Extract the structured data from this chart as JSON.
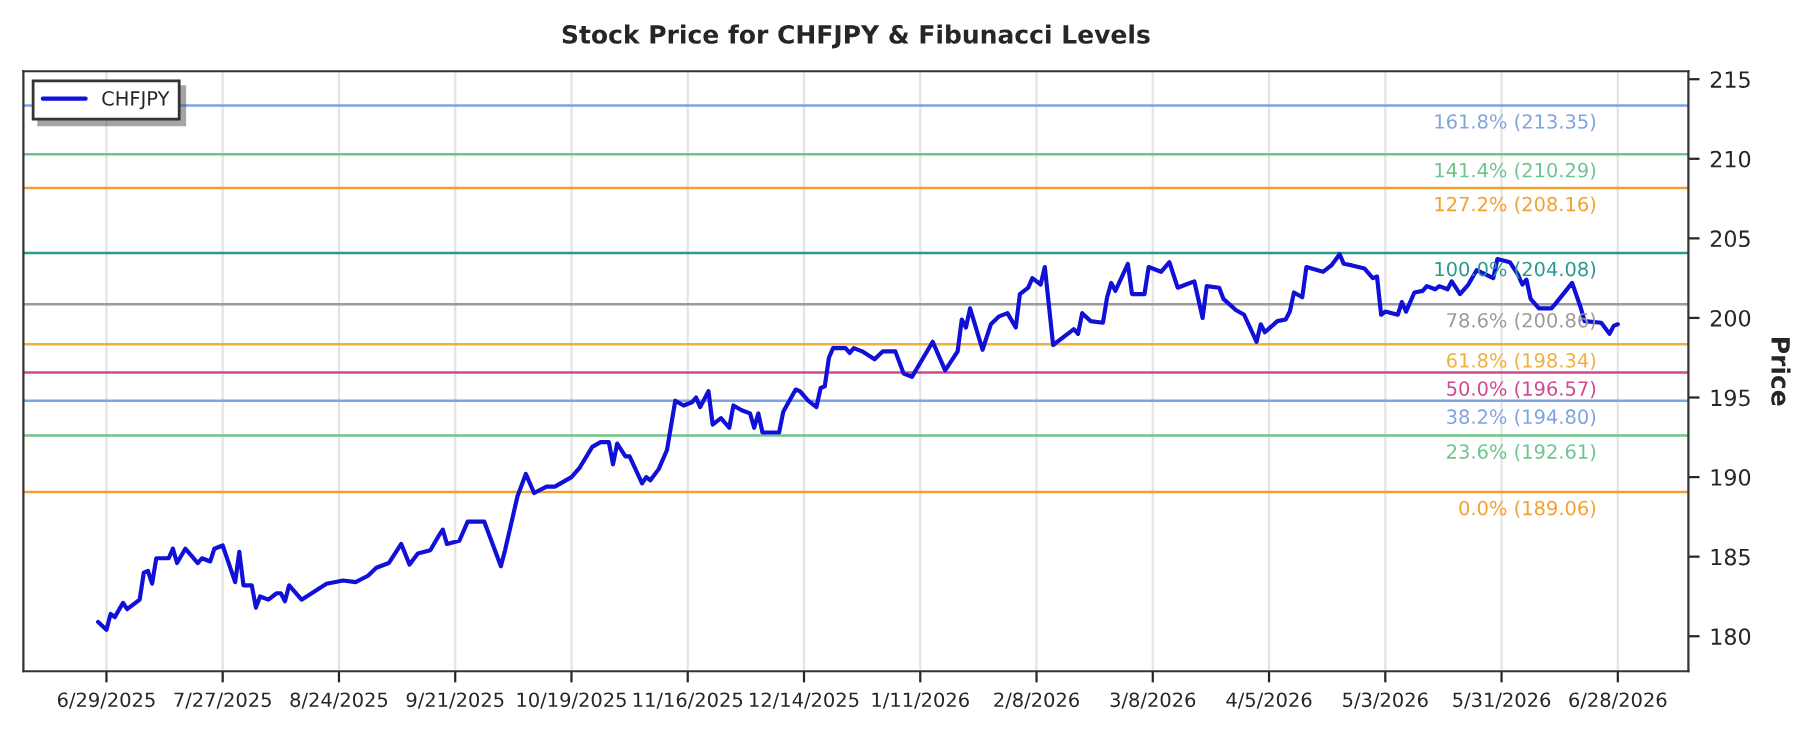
{
  "chart_data": {
    "type": "line",
    "title": "Stock Price for CHFJPY & Fibunacci Levels",
    "ylabel": "Price",
    "x": [
      "2025-06-27",
      "2025-06-29",
      "2025-06-30",
      "2025-07-01",
      "2025-07-03",
      "2025-07-04",
      "2025-07-07",
      "2025-07-08",
      "2025-07-09",
      "2025-07-10",
      "2025-07-11",
      "2025-07-14",
      "2025-07-15",
      "2025-07-16",
      "2025-07-18",
      "2025-07-21",
      "2025-07-22",
      "2025-07-24",
      "2025-07-25",
      "2025-07-27",
      "2025-07-30",
      "2025-07-31",
      "2025-08-01",
      "2025-08-03",
      "2025-08-04",
      "2025-08-05",
      "2025-08-07",
      "2025-08-09",
      "2025-08-10",
      "2025-08-11",
      "2025-08-12",
      "2025-08-15",
      "2025-08-18",
      "2025-08-21",
      "2025-08-25",
      "2025-08-28",
      "2025-08-31",
      "2025-09-02",
      "2025-09-05",
      "2025-09-08",
      "2025-09-10",
      "2025-09-12",
      "2025-09-15",
      "2025-09-17",
      "2025-09-18",
      "2025-09-19",
      "2025-09-22",
      "2025-09-24",
      "2025-09-28",
      "2025-09-30",
      "2025-10-02",
      "2025-10-03",
      "2025-10-06",
      "2025-10-08",
      "2025-10-10",
      "2025-10-13",
      "2025-10-15",
      "2025-10-19",
      "2025-10-21",
      "2025-10-24",
      "2025-10-26",
      "2025-10-28",
      "2025-10-29",
      "2025-10-30",
      "2025-11-01",
      "2025-11-02",
      "2025-11-05",
      "2025-11-06",
      "2025-11-07",
      "2025-11-09",
      "2025-11-11",
      "2025-11-13",
      "2025-11-15",
      "2025-11-17",
      "2025-11-18",
      "2025-11-19",
      "2025-11-21",
      "2025-11-22",
      "2025-11-24",
      "2025-11-26",
      "2025-11-27",
      "2025-11-29",
      "2025-12-01",
      "2025-12-02",
      "2025-12-03",
      "2025-12-04",
      "2025-12-08",
      "2025-12-09",
      "2025-12-12",
      "2025-12-13",
      "2025-12-15",
      "2025-12-17",
      "2025-12-18",
      "2025-12-19",
      "2025-12-20",
      "2025-12-21",
      "2025-12-24",
      "2025-12-25",
      "2025-12-26",
      "2025-12-28",
      "2025-12-31",
      "2026-01-02",
      "2026-01-05",
      "2026-01-07",
      "2026-01-09",
      "2026-01-14",
      "2026-01-17",
      "2026-01-20",
      "2026-01-21",
      "2026-01-22",
      "2026-01-23",
      "2026-01-26",
      "2026-01-28",
      "2026-01-30",
      "2026-02-01",
      "2026-02-03",
      "2026-02-04",
      "2026-02-06",
      "2026-02-07",
      "2026-02-09",
      "2026-02-10",
      "2026-02-12",
      "2026-02-14",
      "2026-02-17",
      "2026-02-18",
      "2026-02-19",
      "2026-02-21",
      "2026-02-24",
      "2026-02-25",
      "2026-02-26",
      "2026-02-27",
      "2026-03-02",
      "2026-03-03",
      "2026-03-06",
      "2026-03-07",
      "2026-03-10",
      "2026-03-12",
      "2026-03-14",
      "2026-03-16",
      "2026-03-18",
      "2026-03-20",
      "2026-03-21",
      "2026-03-24",
      "2026-03-25",
      "2026-03-28",
      "2026-03-30",
      "2026-04-02",
      "2026-04-03",
      "2026-04-04",
      "2026-04-07",
      "2026-04-09",
      "2026-04-10",
      "2026-04-11",
      "2026-04-13",
      "2026-04-14",
      "2026-04-18",
      "2026-04-20",
      "2026-04-22",
      "2026-04-23",
      "2026-04-25",
      "2026-04-28",
      "2026-04-30",
      "2026-05-01",
      "2026-05-02",
      "2026-05-03",
      "2026-05-06",
      "2026-05-07",
      "2026-05-08",
      "2026-05-10",
      "2026-05-12",
      "2026-05-13",
      "2026-05-15",
      "2026-05-16",
      "2026-05-18",
      "2026-05-19",
      "2026-05-21",
      "2026-05-23",
      "2026-05-25",
      "2026-05-29",
      "2026-05-30",
      "2026-06-02",
      "2026-06-04",
      "2026-06-05",
      "2026-06-06",
      "2026-06-07",
      "2026-06-09",
      "2026-06-12",
      "2026-06-13",
      "2026-06-17",
      "2026-06-19",
      "2026-06-20",
      "2026-06-24",
      "2026-06-26",
      "2026-06-27",
      "2026-06-28"
    ],
    "series": [
      {
        "name": "CHFJPY",
        "color": "#1010d8",
        "values": [
          180.9,
          180.4,
          181.4,
          181.2,
          182.1,
          181.7,
          182.3,
          184.0,
          184.1,
          183.3,
          184.9,
          184.9,
          185.5,
          184.6,
          185.5,
          184.6,
          184.9,
          184.7,
          185.5,
          185.7,
          183.4,
          185.3,
          183.2,
          183.2,
          181.8,
          182.5,
          182.3,
          182.7,
          182.7,
          182.2,
          183.2,
          182.3,
          182.8,
          183.3,
          183.5,
          183.4,
          183.8,
          184.3,
          184.6,
          185.8,
          184.5,
          185.2,
          185.4,
          186.3,
          186.7,
          185.8,
          186.0,
          187.2,
          187.2,
          185.8,
          184.4,
          185.4,
          188.8,
          190.2,
          189.0,
          189.4,
          189.4,
          190.0,
          190.6,
          191.9,
          192.2,
          192.2,
          190.8,
          192.1,
          191.3,
          191.3,
          189.6,
          190.0,
          189.8,
          190.5,
          191.7,
          194.8,
          194.5,
          194.7,
          195.0,
          194.4,
          195.4,
          193.3,
          193.7,
          193.1,
          194.5,
          194.2,
          194.0,
          193.1,
          194.0,
          192.8,
          192.8,
          194.1,
          195.5,
          195.4,
          194.8,
          194.4,
          195.6,
          195.7,
          197.5,
          198.1,
          198.1,
          197.8,
          198.1,
          197.9,
          197.4,
          197.9,
          197.9,
          196.5,
          196.3,
          198.5,
          196.7,
          197.9,
          199.9,
          199.4,
          200.6,
          198.0,
          199.6,
          200.1,
          200.3,
          199.4,
          201.5,
          201.9,
          202.5,
          202.1,
          203.2,
          198.3,
          198.7,
          199.3,
          199.0,
          200.3,
          199.8,
          199.7,
          201.3,
          202.2,
          201.7,
          203.4,
          201.5,
          201.5,
          203.2,
          202.9,
          203.5,
          201.9,
          202.1,
          202.3,
          200.0,
          202.0,
          201.9,
          201.2,
          200.5,
          200.2,
          198.5,
          199.6,
          199.1,
          199.8,
          199.9,
          200.4,
          201.6,
          201.3,
          203.2,
          202.9,
          203.3,
          204.0,
          203.4,
          203.3,
          203.1,
          202.5,
          202.6,
          200.2,
          200.4,
          200.2,
          201.0,
          200.4,
          201.6,
          201.7,
          202.0,
          201.8,
          202.0,
          201.8,
          202.3,
          201.5,
          202.1,
          203.0,
          202.5,
          203.7,
          203.5,
          202.7,
          202.1,
          202.4,
          201.2,
          200.6,
          200.6,
          200.9,
          202.2,
          200.7,
          199.8,
          199.7,
          199.0,
          199.5,
          199.6
        ]
      }
    ],
    "xlim": [
      "2025-06-09",
      "2026-07-15"
    ],
    "xticks": [
      {
        "value": "2025-06-29",
        "label": "6/29/2025"
      },
      {
        "value": "2025-07-27",
        "label": "7/27/2025"
      },
      {
        "value": "2025-08-24",
        "label": "8/24/2025"
      },
      {
        "value": "2025-09-21",
        "label": "9/21/2025"
      },
      {
        "value": "2025-10-19",
        "label": "10/19/2025"
      },
      {
        "value": "2025-11-16",
        "label": "11/16/2025"
      },
      {
        "value": "2025-12-14",
        "label": "12/14/2025"
      },
      {
        "value": "2026-01-11",
        "label": "1/11/2026"
      },
      {
        "value": "2026-02-08",
        "label": "2/8/2026"
      },
      {
        "value": "2026-03-08",
        "label": "3/8/2026"
      },
      {
        "value": "2026-04-05",
        "label": "4/5/2026"
      },
      {
        "value": "2026-05-03",
        "label": "5/3/2026"
      },
      {
        "value": "2026-05-31",
        "label": "5/31/2026"
      },
      {
        "value": "2026-06-28",
        "label": "6/28/2026"
      }
    ],
    "ylim": [
      177.8,
      215.5
    ],
    "yticks": [
      180,
      185,
      190,
      195,
      200,
      205,
      210,
      215
    ],
    "ref_lines": [
      {
        "axis": "y",
        "value": 213.35,
        "label": "161.8% (213.35)",
        "color": "#7fa3e0"
      },
      {
        "axis": "y",
        "value": 210.29,
        "label": "141.4% (210.29)",
        "color": "#6cc58a"
      },
      {
        "axis": "y",
        "value": 208.16,
        "label": "127.2% (208.16)",
        "color": "#f2a030"
      },
      {
        "axis": "y",
        "value": 204.08,
        "label": "100.0% (204.08)",
        "color": "#2a9a90"
      },
      {
        "axis": "y",
        "value": 200.86,
        "label": "78.6% (200.86)",
        "color": "#9a9a9a"
      },
      {
        "axis": "y",
        "value": 198.34,
        "label": "61.8% (198.34)",
        "color": "#f0b040"
      },
      {
        "axis": "y",
        "value": 196.57,
        "label": "50.0% (196.57)",
        "color": "#d04890"
      },
      {
        "axis": "y",
        "value": 194.8,
        "label": "38.2% (194.80)",
        "color": "#7fa3e0"
      },
      {
        "axis": "y",
        "value": 192.61,
        "label": "23.6% (192.61)",
        "color": "#6cc58a"
      },
      {
        "axis": "y",
        "value": 189.06,
        "label": "0.0% (189.06)",
        "color": "#f2a030"
      }
    ],
    "grid": "x",
    "legend": "top left",
    "line_style": "solid",
    "marker": "none"
  }
}
